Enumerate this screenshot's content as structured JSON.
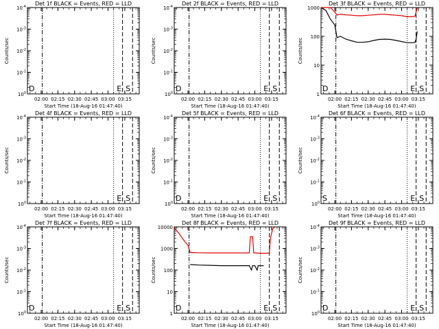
{
  "colors": {
    "events": "#000000",
    "lld": "#e00000",
    "axis": "#000000",
    "background": "#ffffff"
  },
  "ylabel": "Counts/sec",
  "xlabel": "Start Time (18-Aug-16 01:47:40)",
  "chart_data": [
    {
      "type": "line",
      "title": "Det 1f BLACK = Events, RED = LLD",
      "ylim": [
        1,
        1000
      ],
      "y_scale": "log",
      "ytick_labels": [
        "10^0",
        "10^-1",
        "10^-2",
        "10^-3",
        "10^-4"
      ],
      "x_range": [
        "01:47:40",
        "03:28:00"
      ],
      "xtick_labels": [
        "02:00",
        "02:15",
        "02:30",
        "02:45",
        "03:00",
        "03:15"
      ],
      "marker_lines": [
        {
          "t": "02:01",
          "style": "dashdot"
        },
        {
          "t": "03:05",
          "style": "dot"
        },
        {
          "t": "03:13",
          "style": "dash"
        },
        {
          "t": "03:22",
          "style": "dash"
        }
      ],
      "markers": [
        "D",
        "E",
        "S"
      ],
      "events": [],
      "lld": []
    },
    {
      "type": "line",
      "title": "Det 2f BLACK = Events, RED = LLD",
      "ylim": [
        1,
        1000
      ],
      "y_scale": "log",
      "ytick_labels": [
        "10^0",
        "10^-1",
        "10^-2",
        "10^-3",
        "10^-4"
      ],
      "x_range": [
        "01:47:40",
        "03:28:00"
      ],
      "xtick_labels": [
        "02:00",
        "02:15",
        "02:30",
        "02:45",
        "03:00",
        "03:15"
      ],
      "marker_lines": [
        {
          "t": "02:01",
          "style": "dashdot"
        },
        {
          "t": "03:05",
          "style": "dot"
        },
        {
          "t": "03:13",
          "style": "dash"
        },
        {
          "t": "03:22",
          "style": "dash"
        }
      ],
      "markers": [
        "D",
        "E",
        "S"
      ],
      "events": [],
      "lld": []
    },
    {
      "type": "line",
      "title": "Det 3f BLACK = Events, RED = LLD",
      "ylim": [
        1,
        1000
      ],
      "y_scale": "log",
      "ytick_labels": [
        "1",
        "10",
        "100",
        "1000"
      ],
      "x_range": [
        "01:47:40",
        "03:28:00"
      ],
      "xtick_labels": [
        "02:00",
        "02:15",
        "02:30",
        "02:45",
        "03:00",
        "03:15"
      ],
      "marker_lines": [
        {
          "t": "02:01",
          "style": "dashdot"
        },
        {
          "t": "03:05",
          "style": "dot"
        },
        {
          "t": "03:13",
          "style": "dash"
        },
        {
          "t": "03:22",
          "style": "dash"
        }
      ],
      "markers": [
        "D",
        "E",
        "S"
      ],
      "events": [
        [
          "01:47:40",
          1000
        ],
        [
          "01:52",
          800
        ],
        [
          "01:56",
          400
        ],
        [
          "02:00",
          250
        ],
        [
          "02:02",
          90
        ],
        [
          "02:05",
          100
        ],
        [
          "02:10",
          80
        ],
        [
          "02:15",
          70
        ],
        [
          "02:20",
          62
        ],
        [
          "02:25",
          62
        ],
        [
          "02:30",
          65
        ],
        [
          "02:35",
          72
        ],
        [
          "02:40",
          78
        ],
        [
          "02:45",
          80
        ],
        [
          "02:50",
          78
        ],
        [
          "02:55",
          72
        ],
        [
          "03:00",
          66
        ],
        [
          "03:05",
          60
        ],
        [
          "03:10",
          60
        ],
        [
          "03:12",
          62
        ],
        [
          "03:13",
          80
        ],
        [
          "03:14",
          150
        ]
      ],
      "lld": [
        [
          "01:47:40",
          1000
        ],
        [
          "01:52",
          1000
        ],
        [
          "01:56",
          1000
        ],
        [
          "02:00",
          700
        ],
        [
          "02:02",
          550
        ],
        [
          "02:05",
          580
        ],
        [
          "02:10",
          560
        ],
        [
          "02:15",
          540
        ],
        [
          "02:20",
          520
        ],
        [
          "02:25",
          520
        ],
        [
          "02:30",
          540
        ],
        [
          "02:35",
          560
        ],
        [
          "02:40",
          580
        ],
        [
          "02:45",
          580
        ],
        [
          "02:50",
          560
        ],
        [
          "02:55",
          540
        ],
        [
          "03:00",
          520
        ],
        [
          "03:05",
          480
        ],
        [
          "03:10",
          480
        ],
        [
          "03:12",
          500
        ],
        [
          "03:13",
          700
        ],
        [
          "03:14",
          1000
        ]
      ]
    },
    {
      "type": "line",
      "title": "Det 4f BLACK = Events, RED = LLD",
      "ylim": [
        1,
        1000
      ],
      "y_scale": "log",
      "ytick_labels": [
        "10^0",
        "10^-1",
        "10^-2",
        "10^-3",
        "10^-4"
      ],
      "x_range": [
        "01:47:40",
        "03:28:00"
      ],
      "xtick_labels": [
        "02:00",
        "02:15",
        "02:30",
        "02:45",
        "03:00",
        "03:15"
      ],
      "marker_lines": [
        {
          "t": "02:01",
          "style": "dashdot"
        },
        {
          "t": "03:05",
          "style": "dot"
        },
        {
          "t": "03:13",
          "style": "dash"
        },
        {
          "t": "03:22",
          "style": "dash"
        }
      ],
      "markers": [
        "E",
        "S"
      ],
      "events": [],
      "lld": []
    },
    {
      "type": "line",
      "title": "Det 5f BLACK = Events, RED = LLD",
      "ylim": [
        1,
        1000
      ],
      "y_scale": "log",
      "ytick_labels": [
        "10^0",
        "10^-1",
        "10^-2",
        "10^-3",
        "10^-4"
      ],
      "x_range": [
        "01:47:40",
        "03:28:00"
      ],
      "xtick_labels": [
        "02:00",
        "02:15",
        "02:30",
        "02:45",
        "03:00",
        "03:15"
      ],
      "marker_lines": [
        {
          "t": "02:01",
          "style": "dashdot"
        },
        {
          "t": "03:05",
          "style": "dot"
        },
        {
          "t": "03:13",
          "style": "dash"
        },
        {
          "t": "03:22",
          "style": "dash"
        }
      ],
      "markers": [
        "D",
        "E",
        "S"
      ],
      "events": [],
      "lld": []
    },
    {
      "type": "line",
      "title": "Det 6f BLACK = Events, RED = LLD",
      "ylim": [
        1,
        1000
      ],
      "y_scale": "log",
      "ytick_labels": [
        "10^0",
        "10^-1",
        "10^-2",
        "10^-3",
        "10^-4"
      ],
      "x_range": [
        "01:47:40",
        "03:28:00"
      ],
      "xtick_labels": [
        "02:00",
        "02:15",
        "02:30",
        "02:45",
        "03:00",
        "03:15"
      ],
      "marker_lines": [
        {
          "t": "02:01",
          "style": "dashdot"
        },
        {
          "t": "03:05",
          "style": "dot"
        },
        {
          "t": "03:13",
          "style": "dash"
        },
        {
          "t": "03:22",
          "style": "dash"
        }
      ],
      "markers": [
        "S",
        "E",
        "S"
      ],
      "events": [],
      "lld": []
    },
    {
      "type": "line",
      "title": "Det 7f BLACK = Events, RED = LLD",
      "ylim": [
        1,
        1000
      ],
      "y_scale": "log",
      "ytick_labels": [
        "10^0",
        "10^-1",
        "10^-2",
        "10^-3",
        "10^-4"
      ],
      "x_range": [
        "01:47:40",
        "03:28:00"
      ],
      "xtick_labels": [
        "02:00",
        "02:15",
        "02:30",
        "02:45",
        "03:00",
        "03:15"
      ],
      "marker_lines": [
        {
          "t": "02:01",
          "style": "dashdot"
        },
        {
          "t": "03:05",
          "style": "dot"
        },
        {
          "t": "03:13",
          "style": "dash"
        },
        {
          "t": "03:22",
          "style": "dash"
        }
      ],
      "markers": [
        "D",
        "E",
        "S"
      ],
      "events": [],
      "lld": []
    },
    {
      "type": "line",
      "title": "Det 8f BLACK = Events, RED = LLD",
      "ylim": [
        1,
        10000
      ],
      "y_scale": "log",
      "ytick_labels": [
        "1",
        "10",
        "100",
        "1000",
        "10000"
      ],
      "x_range": [
        "01:47:40",
        "03:28:00"
      ],
      "xtick_labels": [
        "02:00",
        "02:15",
        "02:30",
        "02:45",
        "03:00",
        "03:15"
      ],
      "marker_lines": [
        {
          "t": "02:01",
          "style": "dashdot"
        },
        {
          "t": "03:05",
          "style": "dot"
        },
        {
          "t": "03:13",
          "style": "dash"
        },
        {
          "t": "03:22",
          "style": "dash"
        }
      ],
      "markers": [
        "D",
        "E",
        "S"
      ],
      "events": [
        [
          "02:02",
          180
        ],
        [
          "02:10",
          170
        ],
        [
          "02:20",
          165
        ],
        [
          "02:30",
          160
        ],
        [
          "02:40",
          160
        ],
        [
          "02:50",
          160
        ],
        [
          "02:55",
          160
        ],
        [
          "02:57",
          100
        ],
        [
          "02:58",
          160
        ],
        [
          "03:00",
          158
        ],
        [
          "03:02",
          100
        ],
        [
          "03:03",
          160
        ],
        [
          "03:05",
          160
        ],
        [
          "03:08",
          158
        ]
      ],
      "lld": [
        [
          "01:47:40",
          9000
        ],
        [
          "01:52",
          5000
        ],
        [
          "01:56",
          2500
        ],
        [
          "02:00",
          1400
        ],
        [
          "02:02",
          650
        ],
        [
          "02:05",
          640
        ],
        [
          "02:10",
          630
        ],
        [
          "02:20",
          620
        ],
        [
          "02:30",
          620
        ],
        [
          "02:40",
          620
        ],
        [
          "02:50",
          620
        ],
        [
          "02:55",
          620
        ],
        [
          "02:56",
          3500
        ],
        [
          "02:58",
          3500
        ],
        [
          "02:59",
          620
        ],
        [
          "03:00",
          620
        ],
        [
          "03:05",
          600
        ],
        [
          "03:10",
          600
        ],
        [
          "03:13",
          620
        ],
        [
          "03:14",
          3000
        ],
        [
          "03:16",
          8000
        ],
        [
          "03:18",
          10000
        ]
      ]
    },
    {
      "type": "line",
      "title": "Det 9f BLACK = Events, RED = LLD",
      "ylim": [
        1,
        1000
      ],
      "y_scale": "log",
      "ytick_labels": [
        "10^0",
        "10^-1",
        "10^-2",
        "10^-3",
        "10^-4"
      ],
      "x_range": [
        "01:47:40",
        "03:28:00"
      ],
      "xtick_labels": [
        "02:00",
        "02:15",
        "02:30",
        "02:45",
        "03:00",
        "03:15"
      ],
      "marker_lines": [
        {
          "t": "02:01",
          "style": "dashdot"
        },
        {
          "t": "03:05",
          "style": "dot"
        },
        {
          "t": "03:13",
          "style": "dash"
        },
        {
          "t": "03:22",
          "style": "dash"
        }
      ],
      "markers": [
        "D",
        "E",
        "S"
      ],
      "events": [],
      "lld": []
    }
  ]
}
